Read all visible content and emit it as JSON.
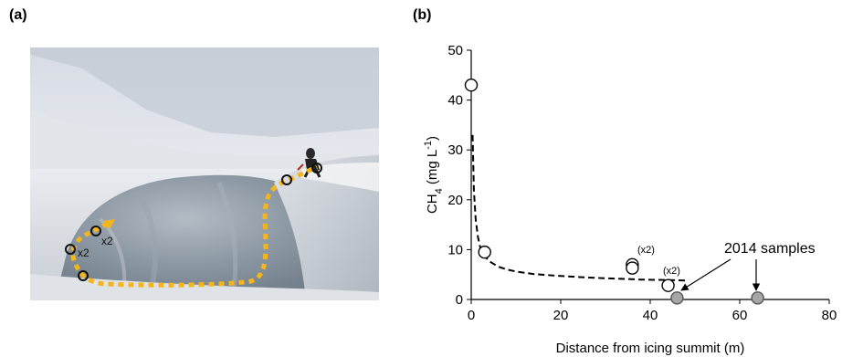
{
  "panel_a": {
    "label": "(a)",
    "annotations": [
      "x2",
      "x2"
    ]
  },
  "panel_b": {
    "label": "(b)"
  },
  "chart_data": {
    "type": "scatter",
    "xlabel": "Distance from icing summit (m)",
    "ylabel_main": "CH",
    "ylabel_sub": "4",
    "ylabel_unit_open": " (mg L",
    "ylabel_unit_sup": "-1",
    "ylabel_unit_close": ")",
    "xlim": [
      0,
      80
    ],
    "ylim": [
      0,
      50
    ],
    "xticks": [
      0,
      20,
      40,
      60,
      80
    ],
    "yticks": [
      0,
      10,
      20,
      30,
      40,
      50
    ],
    "grid": false,
    "series": [
      {
        "marker": "open-circle",
        "x": [
          0,
          3,
          36,
          36,
          44
        ],
        "y": [
          43,
          9.5,
          7,
          6.3,
          2.8
        ]
      },
      {
        "name": "2014 samples",
        "marker": "filled-grey-circle",
        "x": [
          46,
          64
        ],
        "y": [
          0.3,
          0.3
        ]
      }
    ],
    "fit_curve": {
      "style": "dashed",
      "x": [
        0.3,
        0.6,
        1,
        1.5,
        2,
        3,
        4,
        6,
        8,
        10,
        14,
        20,
        26,
        32,
        38,
        44,
        48
      ],
      "y": [
        33,
        22,
        16,
        12.5,
        10.5,
        8.7,
        7.7,
        6.6,
        6.0,
        5.6,
        5.1,
        4.7,
        4.4,
        4.2,
        4.0,
        3.9,
        3.8
      ]
    },
    "annotations": {
      "x2_upper": "(x2)",
      "x2_lower": "(x2)",
      "samples_2014": "2014 samples"
    }
  },
  "colors": {
    "path": "#f5b61d",
    "filled_marker": "#a6a6a6"
  }
}
